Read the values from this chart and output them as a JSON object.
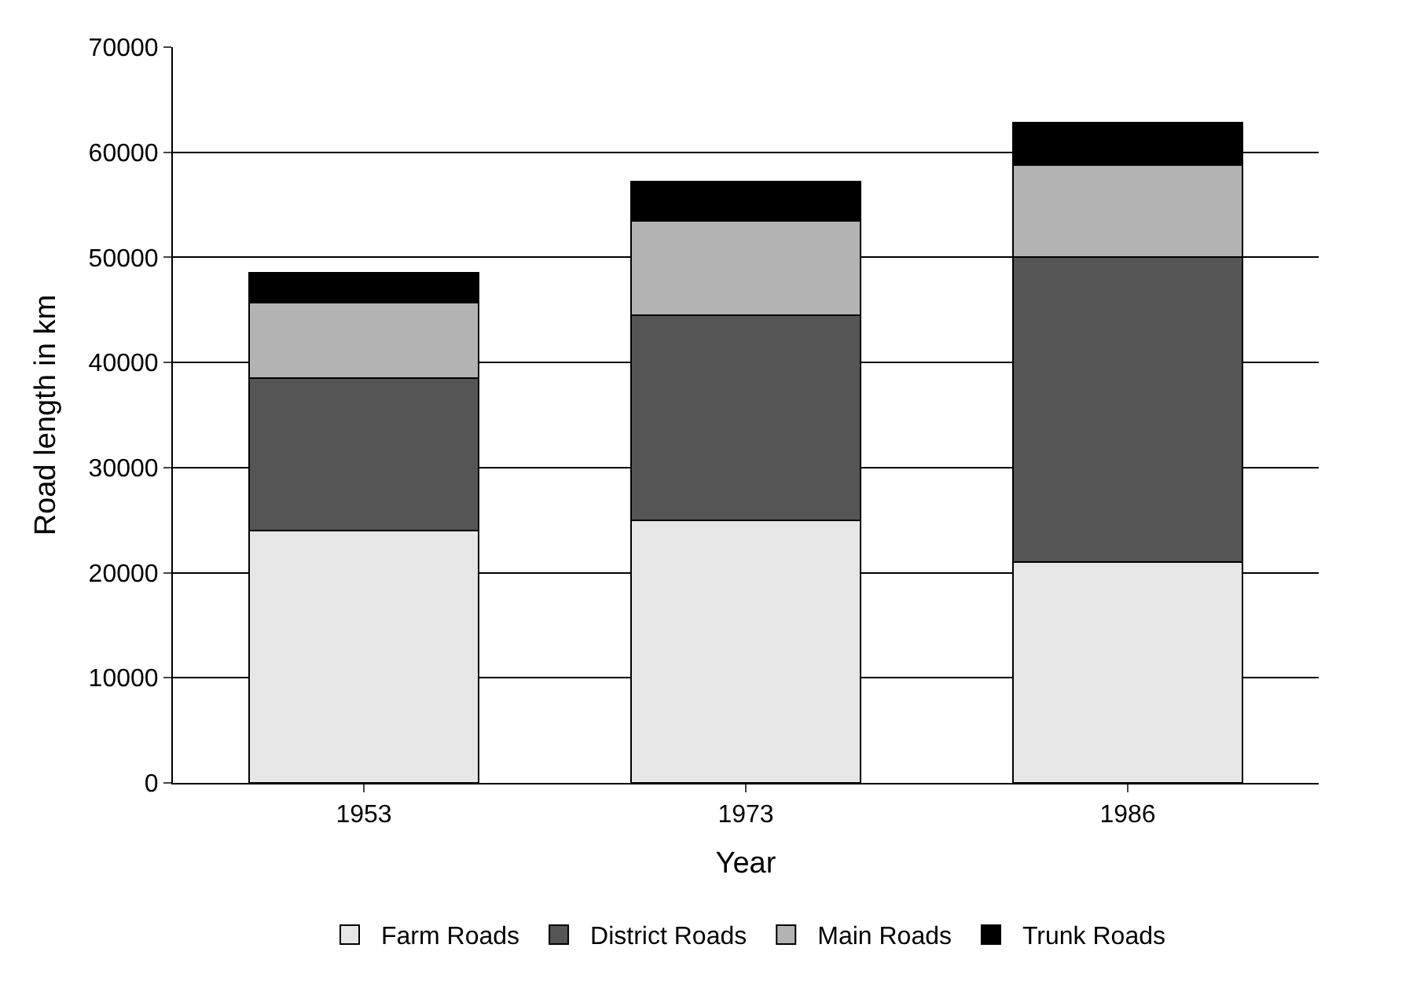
{
  "chart_data": {
    "type": "bar",
    "stacked": true,
    "xlabel": "Year",
    "ylabel": "Road length in km",
    "categories": [
      "1953",
      "1973",
      "1986"
    ],
    "series": [
      {
        "name": "Farm Roads",
        "color": "#e6e6e6",
        "values": [
          24000,
          25000,
          21000
        ]
      },
      {
        "name": "District Roads",
        "color": "#555555",
        "values": [
          14500,
          19500,
          29000
        ]
      },
      {
        "name": "Main Roads",
        "color": "#b3b3b3",
        "values": [
          7200,
          9000,
          8800
        ]
      },
      {
        "name": "Trunk Roads",
        "color": "#000000",
        "values": [
          2800,
          3700,
          4000
        ]
      }
    ],
    "ylim": [
      0,
      70000
    ],
    "yticks": [
      0,
      10000,
      20000,
      30000,
      40000,
      50000,
      60000,
      70000
    ],
    "grid": "y",
    "legend": "bottom"
  }
}
